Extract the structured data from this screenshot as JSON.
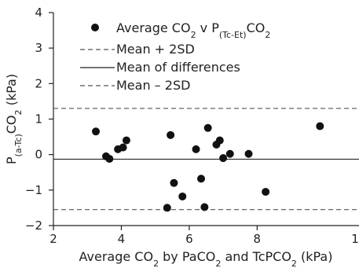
{
  "chart_data": {
    "type": "scatter",
    "x_axis": {
      "label_parts": [
        "Average CO",
        "2",
        " by Pa",
        "CO",
        "2",
        " and TcP",
        "CO",
        "2",
        " (kPa)"
      ],
      "range": [
        2,
        11
      ],
      "ticks": [
        2,
        4,
        6,
        8
      ],
      "tick_labels": [
        "2",
        "4",
        "6",
        "8"
      ],
      "edge_label": "1"
    },
    "y_axis": {
      "label_parts": [
        "P",
        "(a-Tc)",
        "CO",
        "2",
        " (kPa)"
      ],
      "range": [
        -2,
        4
      ],
      "ticks": [
        4,
        3,
        2,
        1,
        0,
        -1,
        -2
      ],
      "tick_labels": [
        "4",
        "3",
        "2",
        "1",
        "0",
        "−1",
        "−2"
      ]
    },
    "reference_lines": {
      "upper": 1.3,
      "mean": -0.13,
      "lower": -1.55
    },
    "legend": {
      "points_label_parts": [
        "Average CO",
        "2",
        " v P",
        "(Tc-Et)",
        "CO",
        "2"
      ],
      "upper_label": "Mean + 2SD",
      "mean_label": "Mean of differences",
      "lower_label": "Mean – 2SD"
    },
    "series": [
      {
        "points": [
          {
            "x": 3.25,
            "y": 0.65
          },
          {
            "x": 3.55,
            "y": -0.05
          },
          {
            "x": 3.65,
            "y": -0.12
          },
          {
            "x": 3.9,
            "y": 0.15
          },
          {
            "x": 4.05,
            "y": 0.2
          },
          {
            "x": 4.15,
            "y": 0.4
          },
          {
            "x": 5.35,
            "y": -1.5
          },
          {
            "x": 5.45,
            "y": 0.55
          },
          {
            "x": 5.55,
            "y": -0.8
          },
          {
            "x": 5.8,
            "y": -1.18
          },
          {
            "x": 6.2,
            "y": 0.15
          },
          {
            "x": 6.35,
            "y": -0.68
          },
          {
            "x": 6.45,
            "y": -1.48
          },
          {
            "x": 6.55,
            "y": 0.75
          },
          {
            "x": 6.8,
            "y": 0.28
          },
          {
            "x": 6.9,
            "y": 0.4
          },
          {
            "x": 7.0,
            "y": -0.1
          },
          {
            "x": 7.2,
            "y": 0.02
          },
          {
            "x": 7.75,
            "y": 0.02
          },
          {
            "x": 8.25,
            "y": -1.05
          },
          {
            "x": 9.85,
            "y": 0.8
          }
        ]
      }
    ]
  }
}
